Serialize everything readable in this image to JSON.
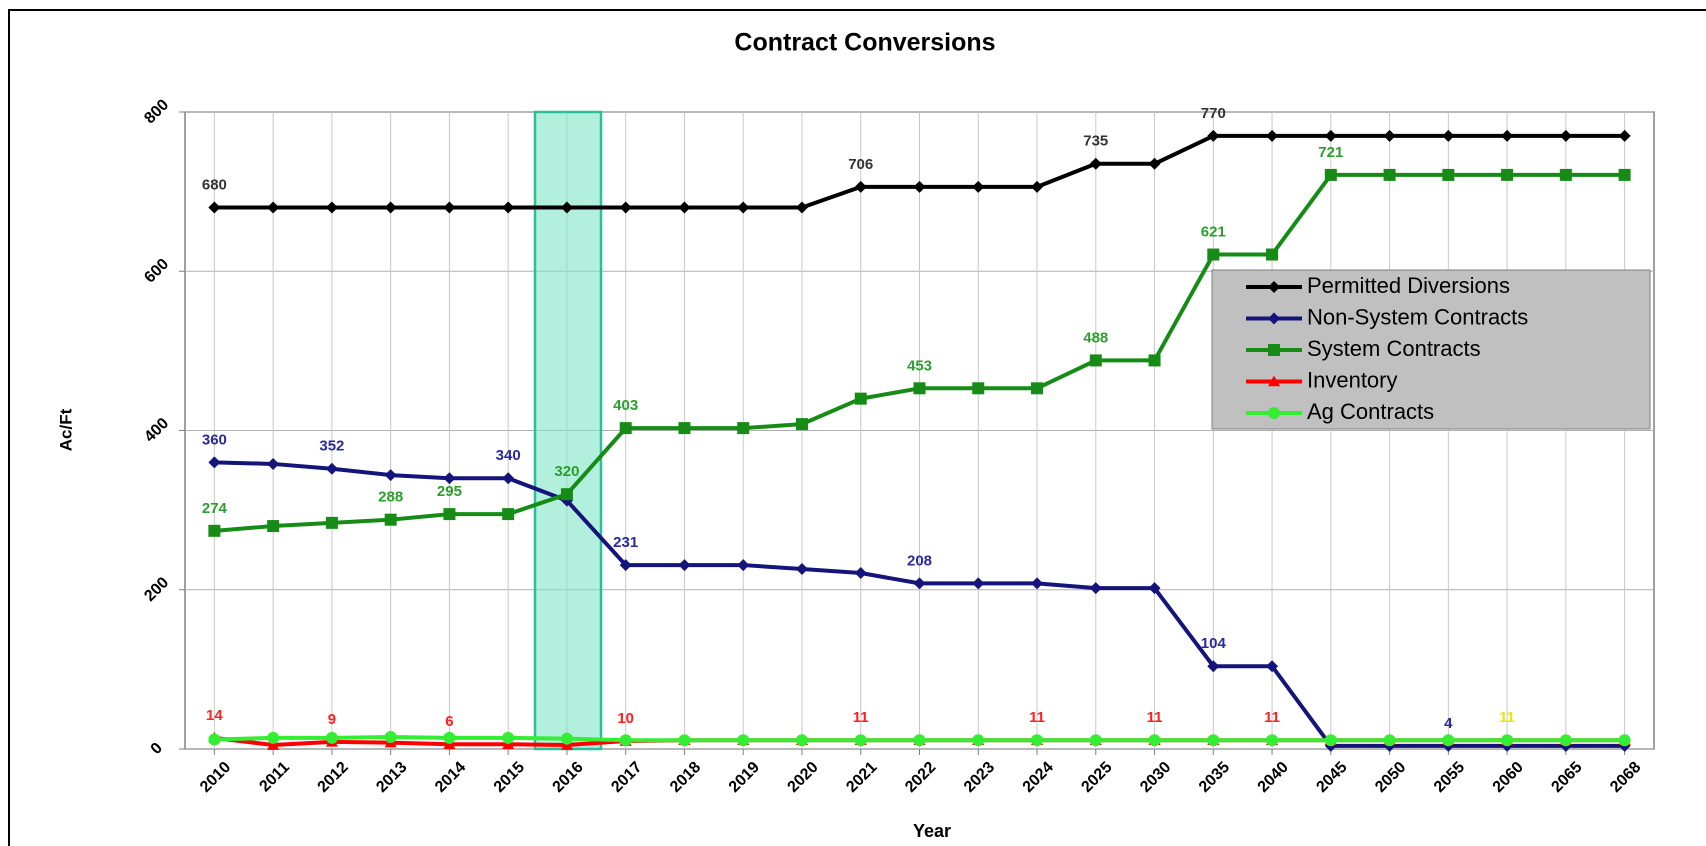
{
  "chart_data": {
    "type": "line",
    "title": "Contract Conversions",
    "x_label": "Year",
    "y_label": "Ac/Ft",
    "categories": [
      "2010",
      "2011",
      "2012",
      "2013",
      "2014",
      "2015",
      "2016",
      "2017",
      "2018",
      "2019",
      "2020",
      "2021",
      "2022",
      "2023",
      "2024",
      "2025",
      "2030",
      "2035",
      "2040",
      "2045",
      "2050",
      "2055",
      "2060",
      "2065",
      "2068"
    ],
    "ylim": [
      0,
      800
    ],
    "yticks": [
      0,
      200,
      400,
      600,
      800
    ],
    "grid": true,
    "legend": "right",
    "series": [
      {
        "name": "Permitted Diversions",
        "color": "#000000",
        "marker": "diamond",
        "label_color": "#333333",
        "values": [
          680,
          680,
          680,
          680,
          680,
          680,
          680,
          680,
          680,
          680,
          680,
          706,
          706,
          706,
          706,
          735,
          735,
          770,
          770,
          770,
          770,
          770,
          770,
          770,
          770
        ],
        "value_labels": [
          "680",
          null,
          null,
          null,
          null,
          null,
          null,
          null,
          null,
          null,
          null,
          "706",
          null,
          null,
          null,
          "735",
          null,
          "770",
          null,
          null,
          null,
          null,
          null,
          null,
          null
        ]
      },
      {
        "name": "Non-System Contracts",
        "color": "#14147a",
        "marker": "diamond",
        "label_color": "#2a2a9a",
        "values": [
          360,
          358,
          352,
          344,
          340,
          340,
          312,
          231,
          231,
          231,
          226,
          221,
          208,
          208,
          208,
          202,
          202,
          104,
          104,
          4,
          4,
          4,
          4,
          4,
          4
        ],
        "value_labels": [
          "360",
          null,
          "352",
          null,
          null,
          "340",
          null,
          "231",
          null,
          null,
          null,
          null,
          "208",
          null,
          null,
          null,
          null,
          "104",
          null,
          null,
          null,
          "4",
          null,
          null,
          null
        ]
      },
      {
        "name": "System Contracts",
        "color": "#168c16",
        "marker": "square",
        "label_color": "#2aa02a",
        "values": [
          274,
          280,
          284,
          288,
          295,
          295,
          320,
          403,
          403,
          403,
          408,
          440,
          453,
          453,
          453,
          488,
          488,
          621,
          621,
          721,
          721,
          721,
          721,
          721,
          721
        ],
        "value_labels": [
          "274",
          null,
          null,
          "288",
          "295",
          null,
          "320",
          "403",
          null,
          null,
          null,
          null,
          "453",
          null,
          null,
          "488",
          null,
          "621",
          null,
          "721",
          null,
          null,
          null,
          null,
          null
        ]
      },
      {
        "name": "Inventory",
        "color": "#ff0000",
        "marker": "triangle",
        "label_color": "#ff2020",
        "values": [
          14,
          5,
          9,
          8,
          6,
          6,
          5,
          10,
          11,
          11,
          11,
          11,
          11,
          11,
          11,
          11,
          11,
          11,
          11,
          11,
          11,
          11,
          11,
          11,
          11
        ],
        "value_labels": [
          "14",
          null,
          "9",
          null,
          "6",
          null,
          null,
          "10",
          null,
          null,
          null,
          "11",
          null,
          null,
          "11",
          null,
          "11",
          null,
          "11",
          null,
          null,
          null,
          null,
          null,
          null
        ]
      },
      {
        "name": "Ag Contracts",
        "color": "#33ee33",
        "marker": "circle",
        "label_color": "#e8e800",
        "values": [
          12,
          14,
          14,
          15,
          14,
          14,
          13,
          11,
          11,
          11,
          11,
          11,
          11,
          11,
          11,
          11,
          11,
          11,
          11,
          11,
          11,
          11,
          11,
          11,
          11
        ],
        "value_labels": [
          null,
          null,
          null,
          null,
          null,
          null,
          null,
          null,
          null,
          null,
          null,
          null,
          null,
          null,
          null,
          null,
          null,
          null,
          null,
          null,
          null,
          null,
          "11",
          null,
          null
        ]
      }
    ]
  }
}
